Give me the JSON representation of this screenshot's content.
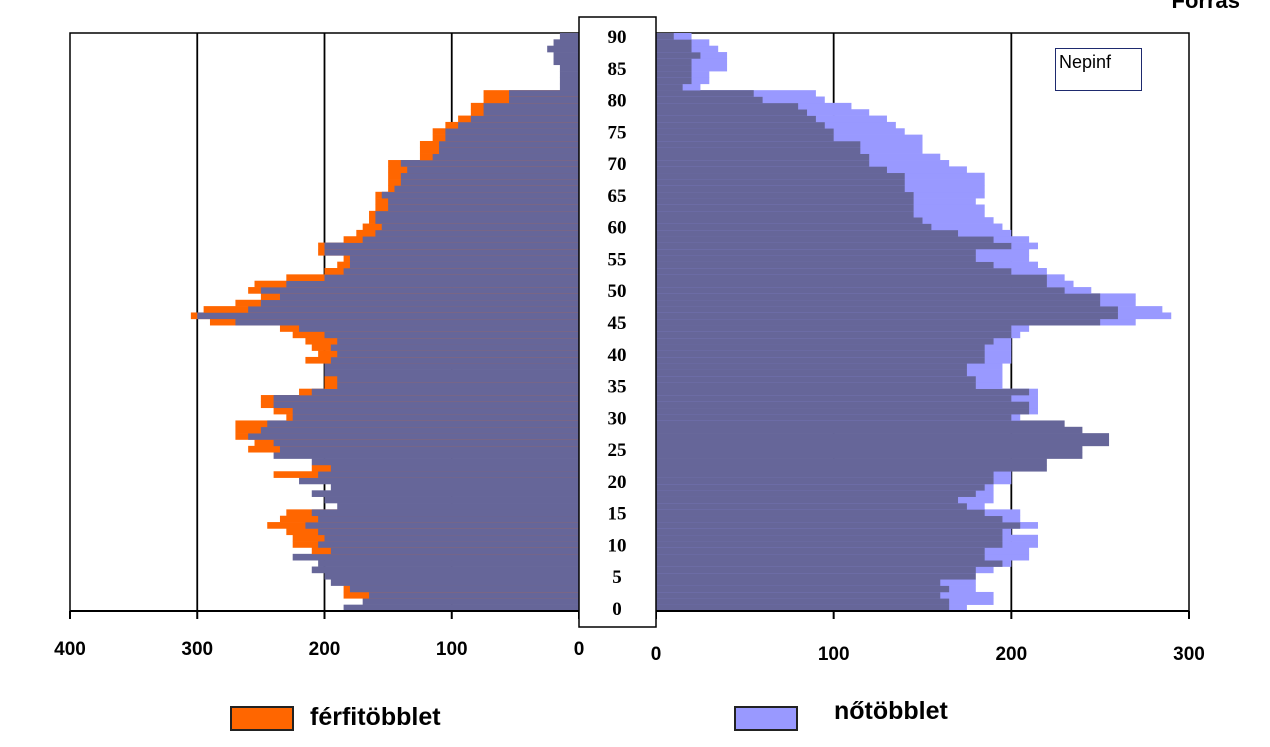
{
  "chart_data": {
    "type": "bar",
    "subtype": "population-pyramid",
    "title": "",
    "top_right_label": "Forrás",
    "note_box": "Nepinf",
    "ages": [
      0,
      1,
      2,
      3,
      4,
      5,
      6,
      7,
      8,
      9,
      10,
      11,
      12,
      13,
      14,
      15,
      16,
      17,
      18,
      19,
      20,
      21,
      22,
      23,
      24,
      25,
      26,
      27,
      28,
      29,
      30,
      31,
      32,
      33,
      34,
      35,
      36,
      37,
      38,
      39,
      40,
      41,
      42,
      43,
      44,
      45,
      46,
      47,
      48,
      49,
      50,
      51,
      52,
      53,
      54,
      55,
      56,
      57,
      58,
      59,
      60,
      61,
      62,
      63,
      64,
      65,
      66,
      67,
      68,
      69,
      70,
      71,
      72,
      73,
      74,
      75,
      76,
      77,
      78,
      79,
      80,
      81,
      82,
      83,
      84,
      85,
      86,
      87,
      88,
      89,
      90
    ],
    "age_tick_labels": [
      "0",
      "5",
      "10",
      "15",
      "20",
      "25",
      "30",
      "35",
      "40",
      "45",
      "50",
      "55",
      "60",
      "65",
      "70",
      "75",
      "80",
      "85",
      "90"
    ],
    "left_axis": {
      "ticks": [
        "400",
        "300",
        "200",
        "100",
        "0"
      ],
      "range": [
        0,
        400
      ]
    },
    "right_axis": {
      "ticks": [
        "0",
        "100",
        "200",
        "300"
      ],
      "range": [
        0,
        300
      ]
    },
    "colors": {
      "base": "#666699",
      "male_excess": "#ff6600",
      "female_excess": "#9999ff"
    },
    "series": [
      {
        "name": "férfitöbblet",
        "side": "left",
        "values": [
          185,
          170,
          165,
          180,
          195,
          200,
          210,
          205,
          225,
          195,
          205,
          200,
          205,
          215,
          205,
          210,
          190,
          200,
          210,
          195,
          220,
          205,
          195,
          210,
          240,
          235,
          240,
          260,
          250,
          245,
          225,
          225,
          240,
          240,
          210,
          190,
          190,
          200,
          200,
          195,
          190,
          195,
          190,
          200,
          220,
          270,
          300,
          260,
          250,
          235,
          250,
          230,
          200,
          185,
          180,
          180,
          200,
          200,
          170,
          160,
          155,
          160,
          160,
          150,
          150,
          155,
          145,
          140,
          140,
          135,
          140,
          115,
          110,
          110,
          105,
          105,
          95,
          85,
          75,
          75,
          55,
          55,
          15,
          15,
          15,
          15,
          20,
          20,
          25,
          20,
          15
        ],
        "excess": [
          165,
          165,
          185,
          185,
          180,
          180,
          200,
          205,
          225,
          210,
          225,
          225,
          230,
          245,
          235,
          230,
          180,
          180,
          175,
          175,
          220,
          240,
          210,
          200,
          230,
          260,
          255,
          270,
          270,
          270,
          230,
          240,
          250,
          250,
          220,
          200,
          200,
          200,
          200,
          215,
          205,
          210,
          215,
          225,
          235,
          290,
          305,
          295,
          270,
          250,
          260,
          255,
          230,
          200,
          190,
          185,
          205,
          205,
          185,
          175,
          170,
          165,
          165,
          160,
          160,
          160,
          150,
          150,
          150,
          150,
          150,
          125,
          125,
          125,
          115,
          115,
          105,
          95,
          85,
          85,
          75,
          75,
          15,
          15,
          15,
          15,
          20,
          20,
          25,
          20,
          15
        ]
      },
      {
        "name": "nőtöbblet",
        "side": "right",
        "values": [
          165,
          165,
          160,
          165,
          160,
          180,
          180,
          195,
          185,
          185,
          195,
          195,
          195,
          205,
          195,
          185,
          175,
          170,
          180,
          185,
          190,
          190,
          220,
          220,
          240,
          240,
          255,
          255,
          240,
          230,
          200,
          210,
          210,
          200,
          210,
          180,
          180,
          175,
          175,
          185,
          185,
          185,
          190,
          200,
          200,
          250,
          260,
          260,
          250,
          250,
          230,
          220,
          220,
          200,
          190,
          180,
          180,
          200,
          190,
          170,
          155,
          150,
          145,
          145,
          145,
          145,
          140,
          140,
          140,
          130,
          120,
          120,
          115,
          115,
          100,
          100,
          95,
          90,
          85,
          80,
          60,
          55,
          15,
          20,
          20,
          20,
          20,
          25,
          20,
          20,
          10
        ],
        "excess": [
          175,
          190,
          190,
          180,
          180,
          180,
          190,
          200,
          210,
          210,
          215,
          215,
          200,
          215,
          205,
          205,
          185,
          190,
          190,
          190,
          200,
          200,
          220,
          220,
          240,
          240,
          255,
          255,
          240,
          230,
          205,
          215,
          215,
          215,
          215,
          195,
          195,
          195,
          195,
          200,
          200,
          200,
          200,
          205,
          210,
          270,
          290,
          285,
          270,
          270,
          245,
          235,
          230,
          220,
          215,
          210,
          210,
          215,
          210,
          200,
          195,
          190,
          185,
          185,
          180,
          185,
          185,
          185,
          185,
          175,
          165,
          160,
          150,
          150,
          150,
          140,
          135,
          130,
          120,
          110,
          95,
          90,
          25,
          30,
          30,
          40,
          40,
          40,
          35,
          30,
          20
        ]
      }
    ],
    "legend": [
      {
        "label": "férfitöbblet",
        "color": "#ff6600"
      },
      {
        "label": "nőtöbblet",
        "color": "#9999ff"
      }
    ]
  }
}
